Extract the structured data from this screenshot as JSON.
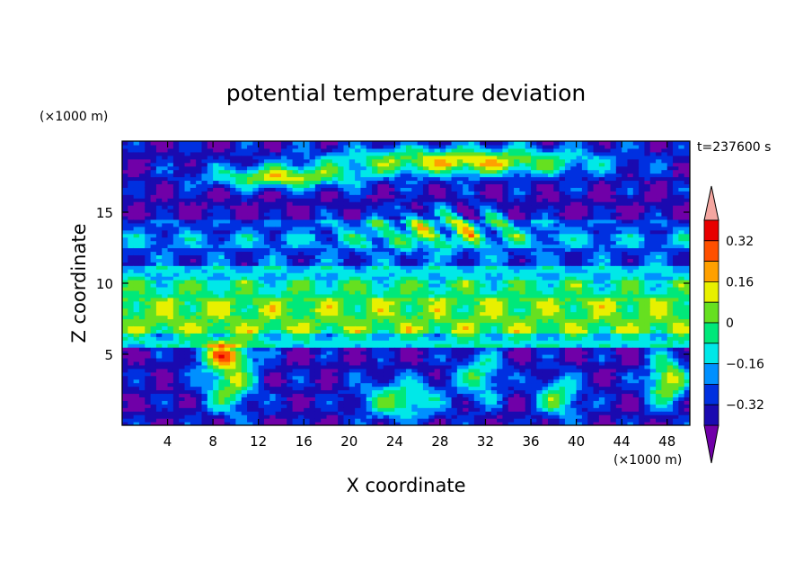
{
  "chart_data": {
    "type": "heatmap",
    "title": "potential temperature deviation",
    "xlabel": "X coordinate",
    "ylabel": "Z coordinate",
    "x_unit": "(×1000 m)",
    "y_unit": "(×1000 m)",
    "time_label": "t=237600 s",
    "xlim": [
      0,
      50
    ],
    "ylim": [
      0,
      20
    ],
    "x_ticks": [
      4,
      8,
      12,
      16,
      20,
      24,
      28,
      32,
      36,
      40,
      44,
      48
    ],
    "y_ticks": [
      5,
      10,
      15
    ],
    "colorbar": {
      "levels": [
        -0.4,
        -0.32,
        -0.24,
        -0.16,
        -0.08,
        0,
        0.08,
        0.16,
        0.24,
        0.32,
        0.4
      ],
      "tick_labels": [
        "0.32",
        "0.16",
        "0",
        "-0.16",
        "-0.32"
      ],
      "tick_values": [
        0.32,
        0.16,
        0,
        -0.16,
        -0.32
      ],
      "colors": [
        "#7000a8",
        "#1a0ab0",
        "#0030e0",
        "#0090ff",
        "#00e8e8",
        "#00e87a",
        "#66e020",
        "#e8f000",
        "#ffa000",
        "#ff5000",
        "#e80000",
        "#f4a6a0"
      ],
      "extend": "both"
    }
  }
}
